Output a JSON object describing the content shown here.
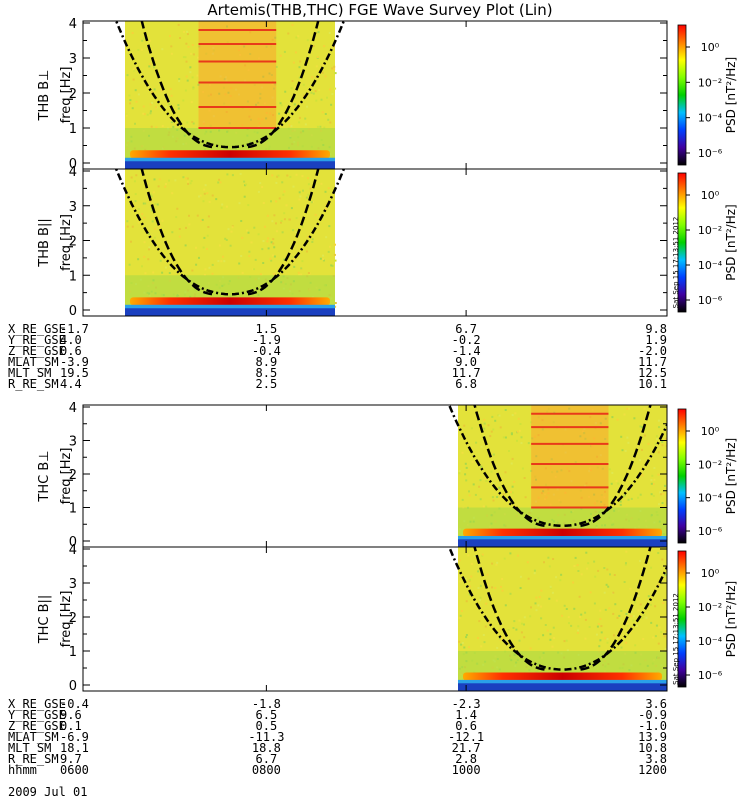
{
  "title": "Artemis(THB,THC) FGE Wave Survey Plot (Lin)",
  "panels": [
    {
      "ylabel_probe": "THB B⊥",
      "ylabel_freq": "freq [Hz]",
      "yticks": [
        "0",
        "1",
        "2",
        "3",
        "4"
      ],
      "data_span": [
        0.0,
        0.35
      ],
      "type": "perp"
    },
    {
      "ylabel_probe": "THB B||",
      "ylabel_freq": "freq [Hz]",
      "yticks": [
        "0",
        "1",
        "2",
        "3",
        "4"
      ],
      "data_span": [
        0.0,
        0.35
      ],
      "type": "par"
    },
    {
      "ylabel_probe": "THC B⊥",
      "ylabel_freq": "freq [Hz]",
      "yticks": [
        "0",
        "1",
        "2",
        "3",
        "4"
      ],
      "data_span": [
        0.6,
        1.0
      ],
      "type": "perp"
    },
    {
      "ylabel_probe": "THC B||",
      "ylabel_freq": "freq [Hz]",
      "yticks": [
        "0",
        "1",
        "2",
        "3",
        "4"
      ],
      "data_span": [
        0.6,
        1.0
      ],
      "type": "par"
    }
  ],
  "colorbar": {
    "label": "PSD [nT²/Hz]",
    "ticks": [
      "10⁰",
      "10⁻²",
      "10⁻⁴",
      "10⁻⁶"
    ],
    "colors": [
      "#ff0000",
      "#ff8000",
      "#ffff00",
      "#80ff00",
      "#00d000",
      "#00c0ff",
      "#0040ff",
      "#4000a0",
      "#000000"
    ]
  },
  "stamp": "Sat Sep 15 17:13:51 2012",
  "ephem_top": {
    "labels": [
      "X_RE_GSE",
      "Y_RE_GSE",
      "Z_RE_GSE",
      "MLAT_SM",
      "MLT_SM",
      "R_RE_SM"
    ],
    "columns": [
      [
        "-1.7",
        "4.0",
        "0.6",
        "-3.9",
        "19.5",
        "4.4"
      ],
      [
        "1.5",
        "-1.9",
        "-0.4",
        "8.9",
        "8.5",
        "2.5"
      ],
      [
        "6.7",
        "-0.2",
        "-1.4",
        "9.0",
        "11.7",
        "6.8"
      ],
      [
        "9.8",
        "1.9",
        "-2.0",
        "11.7",
        "12.5",
        "10.1"
      ]
    ]
  },
  "ephem_bottom": {
    "labels": [
      "X_RE_GSE",
      "Y_RE_GSE",
      "Z_RE_GSE",
      "MLAT_SM",
      "MLT_SM",
      "R_RE_SM",
      "hhmm"
    ],
    "columns": [
      [
        "-0.4",
        "9.6",
        "0.1",
        "-6.9",
        "18.1",
        "9.7",
        "0600"
      ],
      [
        "-1.8",
        "6.5",
        "0.5",
        "-11.3",
        "18.8",
        "6.7",
        "0800"
      ],
      [
        "-2.3",
        "1.4",
        "0.6",
        "-12.1",
        "21.7",
        "2.8",
        "1000"
      ],
      [
        "3.6",
        "-0.9",
        "-1.0",
        "13.9",
        "10.8",
        "3.8",
        "1200"
      ]
    ],
    "date": "2009 Jul 01"
  },
  "chart_data": {
    "type": "heatmap",
    "title": "Artemis(THB,THC) FGE Wave Survey Plot (Lin)",
    "x_ticks": [
      "0600",
      "0800",
      "1000",
      "1200"
    ],
    "ylim": [
      0,
      4
    ],
    "ylabel": "freq [Hz]",
    "colorbar_label": "PSD [nT²/Hz]",
    "colorbar_ticks": [
      "10⁰",
      "10⁻²",
      "10⁻⁴",
      "10⁻⁶"
    ],
    "panels": [
      "THB B⊥",
      "THB B||",
      "THC B⊥",
      "THC B||"
    ]
  }
}
